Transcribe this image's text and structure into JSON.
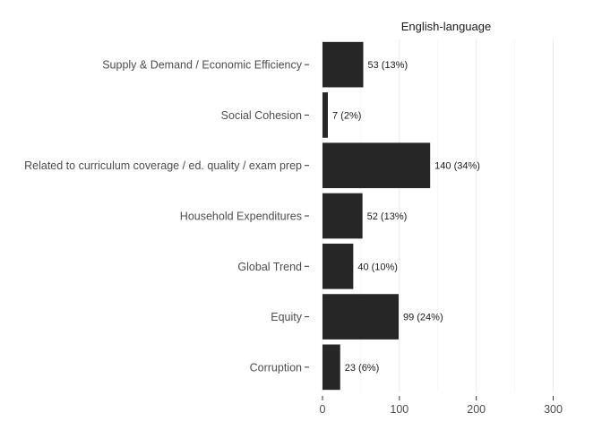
{
  "chart_data": {
    "type": "bar",
    "orientation": "horizontal",
    "facet_title": "English-language",
    "categories": [
      "Supply & Demand / Economic Efficiency",
      "Social Cohesion",
      "Related to curriculum coverage / ed. quality / exam prep",
      "Household Expenditures",
      "Global Trend",
      "Equity",
      "Corruption"
    ],
    "values": [
      53,
      7,
      140,
      52,
      40,
      99,
      23
    ],
    "labels": [
      "53 (13%)",
      "7 (2%)",
      "140 (34%)",
      "52 (13%)",
      "40 (10%)",
      "99 (24%)",
      "23 (6%)"
    ],
    "xlim": [
      0,
      300
    ],
    "xticks": [
      0,
      100,
      200,
      300
    ],
    "xlabel": "",
    "ylabel": "",
    "grid": true,
    "bar_color": "#262626"
  }
}
